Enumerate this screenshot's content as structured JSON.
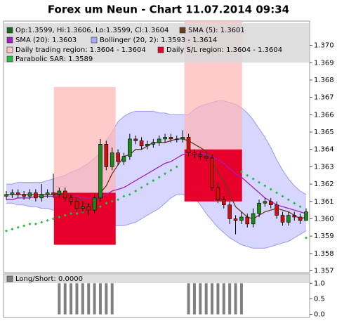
{
  "chart_data": [
    {
      "type": "candlestick",
      "title": "Forex um Neun - Chart 11.07.2014 09:34",
      "legend": [
        {
          "text": "Op:1.3599, Hi:1.3606, Lo:1.3599, Cl:1.3604",
          "color": "#1a6a1a"
        },
        {
          "text": "SMA (5): 1.3601",
          "color": "#6b3a1f"
        },
        {
          "text": "SMA (20): 1.3603",
          "color": "#a020c0"
        },
        {
          "text": "Bollinger (20, 2): 1.3593 - 1.3614",
          "color": "#aaaaff"
        },
        {
          "text": "Daily trading region: 1.3604 - 1.3604",
          "color": "#ffc8c8"
        },
        {
          "text": "Daily S/L region: 1.3604 - 1.3604",
          "color": "#e8002a"
        },
        {
          "text": "Parabolic SAR: 1.3589",
          "color": "#22bb44"
        }
      ],
      "up_color": "#1a8a1a",
      "down_color": "#d01010",
      "open": [
        1.3613,
        1.3614,
        1.3615,
        1.3614,
        1.3613,
        1.3615,
        1.3612,
        1.3614,
        1.3615,
        1.3614,
        1.3616,
        1.3612,
        1.361,
        1.3606,
        1.3607,
        1.3605,
        1.3612,
        1.3643,
        1.363,
        1.3638,
        1.3633,
        1.3636,
        1.3646,
        1.3645,
        1.3642,
        1.3643,
        1.3644,
        1.3646,
        1.3647,
        1.3646,
        1.3646,
        1.3647,
        1.3638,
        1.3637,
        1.3636,
        1.3635,
        1.3618,
        1.3611,
        1.3608,
        1.36,
        1.3599,
        1.3601,
        1.3597,
        1.3603,
        1.3609,
        1.361,
        1.3608,
        1.3602,
        1.3598,
        1.3602,
        1.3601,
        1.3599
      ],
      "high": [
        1.3616,
        1.3617,
        1.3617,
        1.3616,
        1.3617,
        1.3617,
        1.362,
        1.3617,
        1.3626,
        1.3618,
        1.3618,
        1.3614,
        1.3612,
        1.361,
        1.3609,
        1.3614,
        1.3646,
        1.3645,
        1.3641,
        1.364,
        1.3638,
        1.3649,
        1.3648,
        1.3647,
        1.3645,
        1.3646,
        1.3648,
        1.3649,
        1.3649,
        1.3648,
        1.3651,
        1.3649,
        1.364,
        1.3639,
        1.3638,
        1.3637,
        1.3621,
        1.3613,
        1.361,
        1.3602,
        1.3604,
        1.3603,
        1.3606,
        1.3611,
        1.3612,
        1.3612,
        1.361,
        1.3604,
        1.3604,
        1.3604,
        1.3603,
        1.3606
      ],
      "low": [
        1.3611,
        1.3612,
        1.3612,
        1.3611,
        1.3611,
        1.361,
        1.361,
        1.3612,
        1.3612,
        1.3612,
        1.361,
        1.3608,
        1.3604,
        1.3604,
        1.3602,
        1.3603,
        1.361,
        1.3628,
        1.3628,
        1.3631,
        1.3631,
        1.3634,
        1.3643,
        1.364,
        1.364,
        1.3641,
        1.3642,
        1.3644,
        1.3644,
        1.3644,
        1.3644,
        1.3636,
        1.3635,
        1.3634,
        1.3633,
        1.3616,
        1.3609,
        1.3606,
        1.3597,
        1.3591,
        1.3597,
        1.3595,
        1.3595,
        1.3601,
        1.3607,
        1.3606,
        1.36,
        1.3596,
        1.3596,
        1.3599,
        1.3597,
        1.3599
      ],
      "close": [
        1.3614,
        1.3615,
        1.3614,
        1.3613,
        1.3615,
        1.3612,
        1.3614,
        1.3615,
        1.3614,
        1.3616,
        1.3612,
        1.361,
        1.3606,
        1.3607,
        1.3605,
        1.3612,
        1.3643,
        1.363,
        1.3638,
        1.3633,
        1.3636,
        1.3646,
        1.3645,
        1.3642,
        1.3643,
        1.3644,
        1.3646,
        1.3647,
        1.3646,
        1.3646,
        1.3647,
        1.3638,
        1.3637,
        1.3636,
        1.3635,
        1.3618,
        1.3611,
        1.3608,
        1.36,
        1.3599,
        1.3601,
        1.3597,
        1.3603,
        1.3609,
        1.361,
        1.3608,
        1.3602,
        1.3598,
        1.3602,
        1.3601,
        1.3599,
        1.3604
      ],
      "sma5": {
        "color": "#6b3a1f",
        "values": [
          1.3614,
          1.3614,
          1.3614,
          1.3614,
          1.3614,
          1.3614,
          1.3614,
          1.3614,
          1.3614,
          1.3614,
          1.3614,
          1.3613,
          1.3612,
          1.361,
          1.3608,
          1.3608,
          1.3615,
          1.3619,
          1.3626,
          1.3631,
          1.3636,
          1.3637,
          1.364,
          1.364,
          1.3642,
          1.3644,
          1.3644,
          1.3644,
          1.3645,
          1.3646,
          1.3646,
          1.3645,
          1.3643,
          1.3641,
          1.3639,
          1.3633,
          1.3627,
          1.3622,
          1.3614,
          1.3607,
          1.3604,
          1.3601,
          1.36,
          1.3602,
          1.3604,
          1.3605,
          1.3606,
          1.3605,
          1.3604,
          1.3602,
          1.36,
          1.3601
        ]
      },
      "sma20": {
        "color": "#a020c0",
        "values": [
          1.3611,
          1.3611,
          1.3612,
          1.3612,
          1.3612,
          1.3613,
          1.3613,
          1.3613,
          1.3613,
          1.3614,
          1.3614,
          1.3613,
          1.3613,
          1.3612,
          1.3612,
          1.3612,
          1.3613,
          1.3614,
          1.3616,
          1.3617,
          1.3618,
          1.362,
          1.3622,
          1.3624,
          1.3626,
          1.3628,
          1.363,
          1.3632,
          1.3633,
          1.3635,
          1.3637,
          1.3638,
          1.3638,
          1.3638,
          1.3637,
          1.3636,
          1.3634,
          1.3632,
          1.3629,
          1.3626,
          1.3624,
          1.3621,
          1.3618,
          1.3615,
          1.3612,
          1.361,
          1.3608,
          1.3607,
          1.3606,
          1.3605,
          1.3604,
          1.3603
        ]
      },
      "bollinger": {
        "color": "#c8c8ff",
        "upper": [
          1.362,
          1.362,
          1.3621,
          1.3621,
          1.3621,
          1.3621,
          1.3621,
          1.3622,
          1.3623,
          1.3624,
          1.3625,
          1.3627,
          1.3628,
          1.363,
          1.3632,
          1.3635,
          1.3638,
          1.3645,
          1.365,
          1.3656,
          1.3659,
          1.3661,
          1.3662,
          1.3662,
          1.3662,
          1.3662,
          1.3661,
          1.3661,
          1.366,
          1.366,
          1.366,
          1.366,
          1.3663,
          1.3665,
          1.3666,
          1.3667,
          1.3668,
          1.3668,
          1.3667,
          1.3666,
          1.3664,
          1.3661,
          1.3657,
          1.3652,
          1.3647,
          1.3641,
          1.3634,
          1.3628,
          1.3623,
          1.3619,
          1.3616,
          1.3614
        ],
        "lower": [
          1.3609,
          1.3609,
          1.3608,
          1.3608,
          1.3607,
          1.3607,
          1.3606,
          1.3606,
          1.3605,
          1.3604,
          1.3603,
          1.3602,
          1.3601,
          1.36,
          1.3598,
          1.3597,
          1.3596,
          1.3596,
          1.3596,
          1.3596,
          1.3596,
          1.3597,
          1.3598,
          1.36,
          1.3602,
          1.3604,
          1.3606,
          1.3609,
          1.3612,
          1.3614,
          1.3614,
          1.3613,
          1.3612,
          1.3608,
          1.3603,
          1.3599,
          1.3595,
          1.3592,
          1.3589,
          1.3587,
          1.3585,
          1.3584,
          1.3583,
          1.3583,
          1.3583,
          1.3584,
          1.3585,
          1.3586,
          1.3587,
          1.3589,
          1.3591,
          1.3593
        ]
      },
      "sar": {
        "color": "#22bb44",
        "values": [
          1.3593,
          1.3594,
          1.3595,
          1.3596,
          1.3597,
          1.3597,
          1.3598,
          1.3599,
          1.36,
          1.3601,
          1.3602,
          1.3603,
          1.3603,
          1.3604,
          1.3605,
          1.3606,
          1.3607,
          1.3609,
          1.361,
          1.3611,
          1.3613,
          1.3614,
          1.3616,
          1.3618,
          1.362,
          1.3622,
          1.3624,
          1.3626,
          1.3628,
          1.363,
          null,
          null,
          null,
          null,
          null,
          null,
          null,
          null,
          null,
          null,
          1.3627,
          1.3625,
          1.3623,
          1.3621,
          1.3619,
          1.3617,
          1.3615,
          1.3613,
          1.3611,
          1.3609,
          1.3607,
          1.3589
        ]
      },
      "regions": [
        {
          "color": "#ffb4b4",
          "start": 8.1,
          "end": 18.6,
          "top": 1.3676,
          "bottom": 1.3615
        },
        {
          "color": "#e8002a",
          "start": 8.1,
          "end": 18.6,
          "top": 1.3615,
          "bottom": 1.3585
        },
        {
          "color": "#ffb4b4",
          "start": 30.3,
          "end": 40.1,
          "top": 1.3714,
          "bottom": 1.364
        },
        {
          "color": "#e8002a",
          "start": 30.3,
          "end": 40.1,
          "top": 1.364,
          "bottom": 1.361
        }
      ],
      "ylim": [
        1.3569,
        1.3714
      ],
      "yticks": [
        1.357,
        1.358,
        1.359,
        {
          "value": 1.36,
          "label": "1.360"
        },
        1.361,
        1.362,
        1.363,
        1.364,
        1.365,
        1.366,
        1.367,
        1.368,
        1.369,
        {
          "value": 1.37,
          "label": "1.370"
        }
      ]
    },
    {
      "type": "bar",
      "label": "Long/Short: 0.0000",
      "color": "#808080",
      "values": [
        0,
        0,
        0,
        0,
        0,
        0,
        0,
        0,
        0,
        1,
        1,
        1,
        1,
        1,
        1,
        1,
        1,
        1,
        1,
        0,
        0,
        0,
        0,
        0,
        0,
        0,
        0,
        0,
        0,
        0,
        0,
        1,
        1,
        1,
        1,
        1,
        1,
        1,
        1,
        1,
        1,
        0,
        0,
        0,
        0,
        0,
        0,
        0,
        0,
        0,
        0,
        0
      ],
      "ylim": [
        -0.1,
        1.3
      ],
      "yticks": [
        {
          "value": 0,
          "label": "0.0"
        },
        0.5,
        {
          "value": 1,
          "label": "1.0"
        }
      ]
    }
  ]
}
